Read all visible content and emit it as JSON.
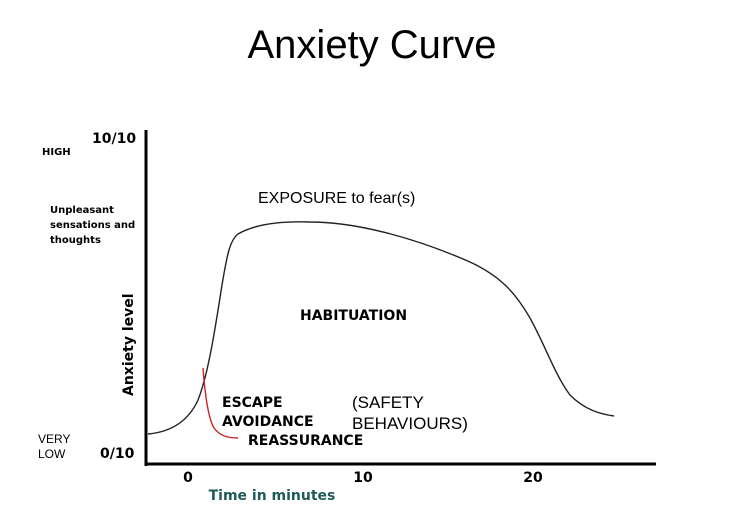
{
  "title": "Anxiety Curve",
  "left_labels": {
    "high": "HIGH",
    "unpleasant_line1": "Unpleasant",
    "unpleasant_line2": "sensations and",
    "unpleasant_line3": "thoughts",
    "very": "VERY",
    "low": "LOW"
  },
  "y_axis": {
    "top_tick": "10/10",
    "bottom_tick": "0/10",
    "label": "Anxiety level"
  },
  "x_axis": {
    "ticks": [
      "0",
      "10",
      "20"
    ],
    "label": "Time in minutes"
  },
  "annotations": {
    "exposure": "EXPOSURE to fear(s)",
    "habituation": "HABITUATION",
    "escape": "ESCAPE",
    "avoidance": "AVOIDANCE",
    "reassurance": "REASSURANCE",
    "safety_line1": "(SAFETY",
    "safety_line2": "BEHAVIOURS)"
  },
  "colors": {
    "axis": "#000000",
    "curve": "#222222",
    "escape_curve": "#cc2222",
    "x_label": "#1f5a5a"
  }
}
